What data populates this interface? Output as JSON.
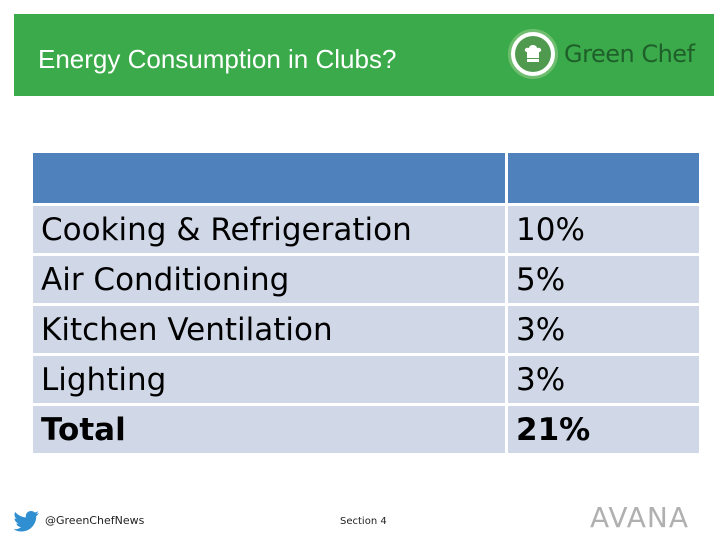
{
  "slide": {
    "title": "Energy Consumption in Clubs?",
    "brand": {
      "logo_word_1": "Green",
      "logo_word_2": "Chef"
    }
  },
  "table": {
    "header": [
      "",
      ""
    ],
    "rows": [
      {
        "label": "Cooking & Refrigeration",
        "value": "10%"
      },
      {
        "label": "Air Conditioning",
        "value": "5%"
      },
      {
        "label": "Kitchen Ventilation",
        "value": "3%"
      },
      {
        "label": "Lighting",
        "value": "3%"
      }
    ],
    "total": {
      "label": "Total",
      "value": "21%"
    }
  },
  "footer": {
    "twitter_handle": "@GreenChefNews",
    "section": "Section 4",
    "company_logo": "AVANA"
  },
  "colors": {
    "header_green": "#3aaa4a",
    "table_header_blue": "#4f81bd",
    "table_row_bg": "#d0d8e8"
  },
  "icons": {
    "twitter": "twitter-bird-icon",
    "chef": "chef-hat-icon"
  }
}
